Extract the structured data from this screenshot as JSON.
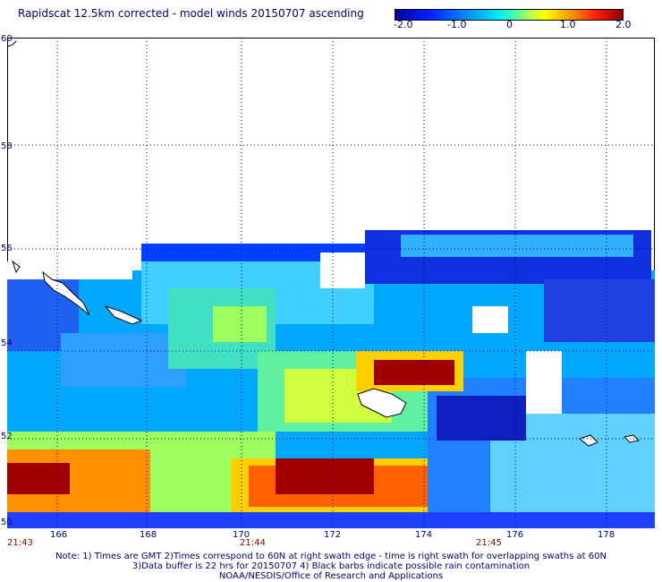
{
  "header": {
    "title": "Rapidscat 12.5km corrected - model winds 20150707 ascending"
  },
  "colorbar": {
    "ticks": [
      "-2.0",
      "-1.0",
      "0",
      "1.0",
      "2.0"
    ],
    "colors": [
      "#0000a0",
      "#0020ff",
      "#0090ff",
      "#00e8ff",
      "#40ffb0",
      "#c0ff40",
      "#ffff00",
      "#ff9000",
      "#ff2000",
      "#900000"
    ]
  },
  "map": {
    "lat_labels": [
      "60",
      "58",
      "56",
      "54",
      "52",
      "50"
    ],
    "lon_labels": [
      "166",
      "168",
      "170",
      "172",
      "174",
      "176",
      "178"
    ],
    "time_labels": [
      "21:43",
      "21:44",
      "21:45"
    ]
  },
  "footer": {
    "note1": "Note: 1) Times are GMT 2)Times correspond to 60N at right swath edge - time is right swath for overlapping swaths at 60N",
    "note2": "3)Data buffer is 22 hrs for 20150707 4) Black barbs indicate possible rain contamination",
    "note3": "NOAA/NESDIS/Office of Research and Applications"
  }
}
